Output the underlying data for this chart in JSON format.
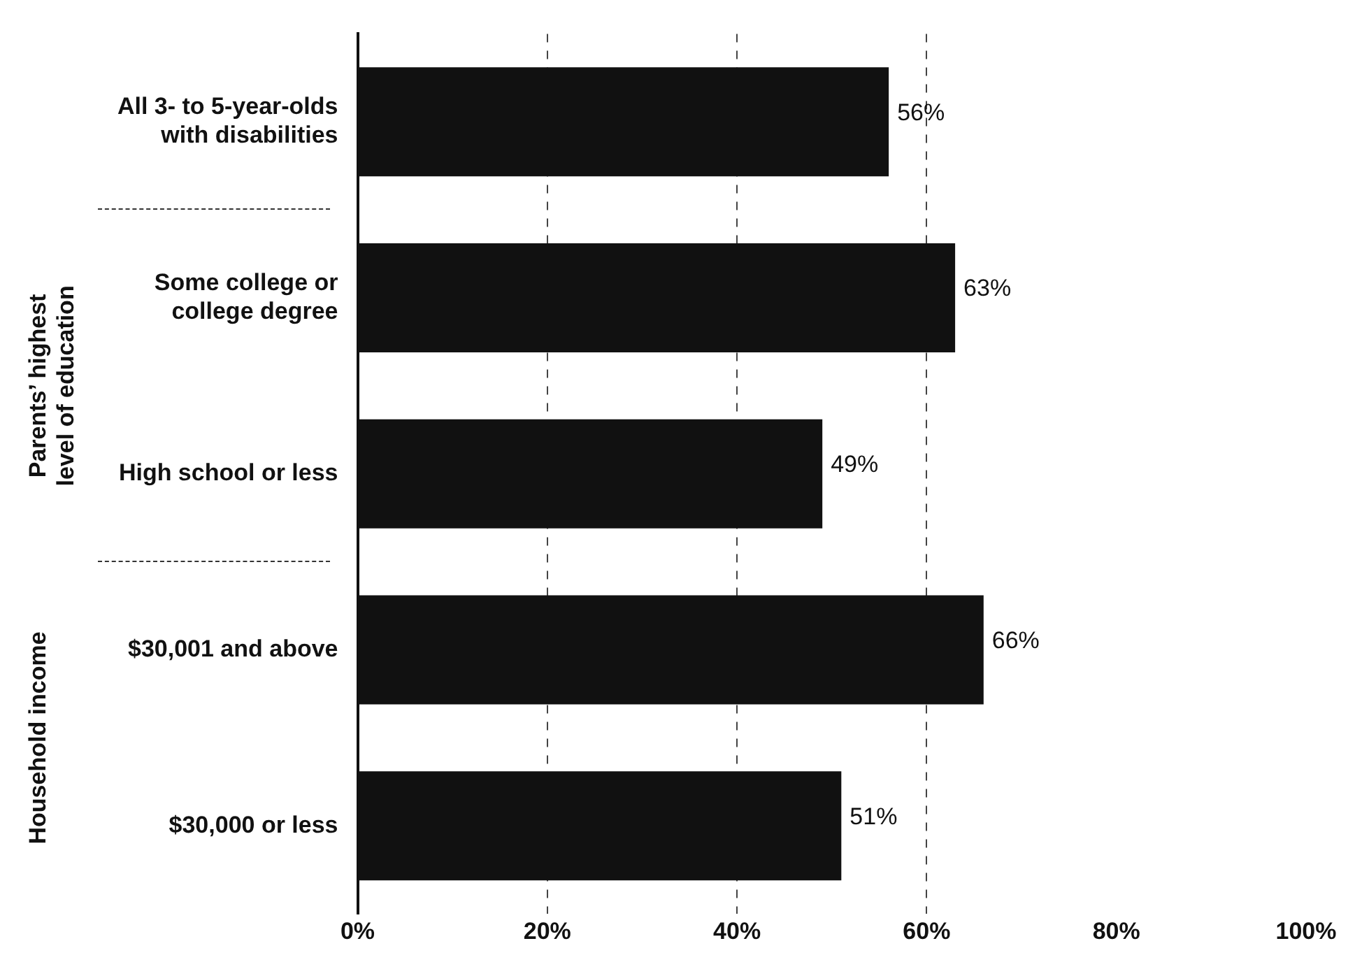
{
  "chart_data": {
    "type": "bar",
    "orientation": "horizontal",
    "categories": [
      "All 3- to 5-year-olds\nwith disabilities",
      "Some college or\ncollege degree",
      "High school or less",
      "$30,001 and above",
      "$30,000 or less"
    ],
    "values": [
      56,
      63,
      49,
      66,
      51
    ],
    "value_labels": [
      "56%",
      "63%",
      "49%",
      "66%",
      "51%"
    ],
    "color": "#111111",
    "xlim": [
      0,
      100
    ],
    "xticks": [
      {
        "value": 0,
        "label": "0%"
      },
      {
        "value": 20,
        "label": "20%"
      },
      {
        "value": 40,
        "label": "40%"
      },
      {
        "value": 60,
        "label": "60%"
      },
      {
        "value": 80,
        "label": "80%"
      },
      {
        "value": 100,
        "label": "100%"
      }
    ],
    "grid": "x",
    "line_style": "dashed",
    "legend": false,
    "annotations": [
      "Parents’ highest\nlevel of education",
      "Household income"
    ]
  }
}
